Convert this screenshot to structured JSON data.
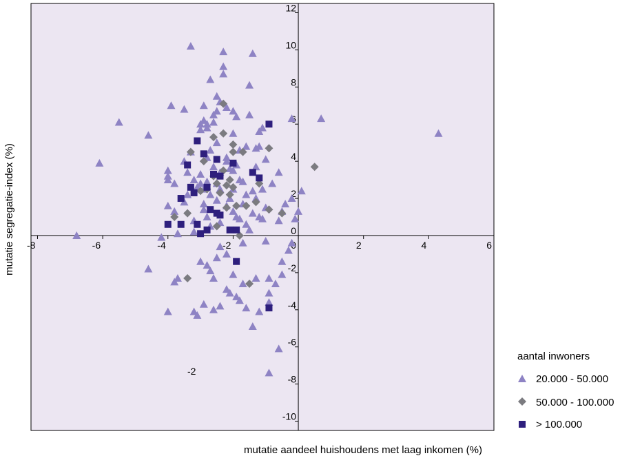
{
  "chart_data": {
    "type": "scatter",
    "xlabel": "mutatie aandeel huishoudens met laag inkomen (%)",
    "ylabel": "mutatie segregatie-index (%)",
    "xlim": [
      -8.2,
      6
    ],
    "ylim": [
      -10.5,
      12.5
    ],
    "x_ticks": [
      -8,
      -6,
      -4,
      -2,
      0,
      2,
      4,
      6
    ],
    "y_ticks": [
      12,
      10,
      8,
      6,
      4,
      2,
      0,
      -2,
      -4,
      -6,
      -8,
      -10
    ],
    "annotation": "-2",
    "background": "#ece6f2",
    "legend_title": "aantal inwoners",
    "legend_position": "right",
    "series": [
      {
        "name": "20.000 - 50.000",
        "marker": "triangle",
        "color": "#8e83c4",
        "points": [
          [
            -6.8,
            0.0
          ],
          [
            -6.1,
            3.9
          ],
          [
            -5.5,
            6.1
          ],
          [
            -4.6,
            5.4
          ],
          [
            -4.6,
            -1.8
          ],
          [
            -4.2,
            -0.1
          ],
          [
            -4.0,
            3.5
          ],
          [
            -4.0,
            3.2
          ],
          [
            -4.0,
            3.0
          ],
          [
            -4.0,
            1.6
          ],
          [
            -4.0,
            -4.1
          ],
          [
            -3.9,
            7.0
          ],
          [
            -3.8,
            2.8
          ],
          [
            -3.8,
            1.3
          ],
          [
            -3.8,
            -2.5
          ],
          [
            -3.7,
            -2.3
          ],
          [
            -3.7,
            0.1
          ],
          [
            -3.5,
            6.8
          ],
          [
            -3.5,
            4.0
          ],
          [
            -3.5,
            1.8
          ],
          [
            -3.4,
            3.4
          ],
          [
            -3.4,
            2.2
          ],
          [
            -3.3,
            10.2
          ],
          [
            -3.3,
            4.5
          ],
          [
            -3.2,
            3.0
          ],
          [
            -3.2,
            0.8
          ],
          [
            -3.2,
            0.2
          ],
          [
            -3.2,
            -4.1
          ],
          [
            -3.1,
            2.6
          ],
          [
            -3.1,
            -4.3
          ],
          [
            -3.0,
            6.0
          ],
          [
            -3.0,
            5.7
          ],
          [
            -3.0,
            3.3
          ],
          [
            -3.0,
            2.8
          ],
          [
            -3.0,
            -1.4
          ],
          [
            -2.9,
            7.0
          ],
          [
            -2.9,
            6.2
          ],
          [
            -2.9,
            2.5
          ],
          [
            -2.9,
            1.7
          ],
          [
            -2.9,
            1.4
          ],
          [
            -2.9,
            -3.7
          ],
          [
            -2.8,
            6.0
          ],
          [
            -2.8,
            5.8
          ],
          [
            -2.8,
            4.2
          ],
          [
            -2.8,
            2.9
          ],
          [
            -2.8,
            1.0
          ],
          [
            -2.8,
            -1.6
          ],
          [
            -2.7,
            8.4
          ],
          [
            -2.7,
            4.6
          ],
          [
            -2.7,
            2.2
          ],
          [
            -2.7,
            0.5
          ],
          [
            -2.7,
            -1.9
          ],
          [
            -2.6,
            6.5
          ],
          [
            -2.6,
            6.1
          ],
          [
            -2.6,
            3.7
          ],
          [
            -2.6,
            -2.3
          ],
          [
            -2.6,
            -4.0
          ],
          [
            -2.5,
            7.5
          ],
          [
            -2.5,
            6.7
          ],
          [
            -2.5,
            5.0
          ],
          [
            -2.5,
            2.8
          ],
          [
            -2.5,
            1.9
          ],
          [
            -2.5,
            -1.2
          ],
          [
            -2.4,
            7.2
          ],
          [
            -2.4,
            3.4
          ],
          [
            -2.4,
            2.5
          ],
          [
            -2.4,
            0.7
          ],
          [
            -2.4,
            -0.6
          ],
          [
            -2.4,
            -3.8
          ],
          [
            -2.3,
            9.9
          ],
          [
            -2.3,
            9.1
          ],
          [
            -2.3,
            8.7
          ],
          [
            -2.2,
            6.9
          ],
          [
            -2.2,
            4.2
          ],
          [
            -2.2,
            4.0
          ],
          [
            -2.2,
            1.6
          ],
          [
            -2.2,
            -1.0
          ],
          [
            -2.2,
            -2.9
          ],
          [
            -2.1,
            3.6
          ],
          [
            -2.1,
            2.0
          ],
          [
            -2.1,
            -3.1
          ],
          [
            -2.0,
            6.7
          ],
          [
            -2.0,
            5.5
          ],
          [
            -2.0,
            3.5
          ],
          [
            -2.0,
            2.5
          ],
          [
            -2.0,
            1.3
          ],
          [
            -2.0,
            -2.1
          ],
          [
            -1.9,
            6.4
          ],
          [
            -1.9,
            3.8
          ],
          [
            -1.9,
            1.0
          ],
          [
            -1.9,
            -3.3
          ],
          [
            -1.8,
            4.6
          ],
          [
            -1.8,
            3.0
          ],
          [
            -1.8,
            0.9
          ],
          [
            -1.8,
            -3.5
          ],
          [
            -1.7,
            2.9
          ],
          [
            -1.7,
            1.7
          ],
          [
            -1.7,
            -0.4
          ],
          [
            -1.7,
            -2.6
          ],
          [
            -1.6,
            4.8
          ],
          [
            -1.6,
            2.2
          ],
          [
            -1.6,
            0.6
          ],
          [
            -1.6,
            -3.9
          ],
          [
            -1.5,
            8.1
          ],
          [
            -1.5,
            6.5
          ],
          [
            -1.5,
            0.3
          ],
          [
            -1.4,
            9.8
          ],
          [
            -1.4,
            2.4
          ],
          [
            -1.4,
            1.2
          ],
          [
            -1.4,
            -4.9
          ],
          [
            -1.3,
            4.7
          ],
          [
            -1.3,
            3.7
          ],
          [
            -1.3,
            2.0
          ],
          [
            -1.3,
            -2.3
          ],
          [
            -1.2,
            5.6
          ],
          [
            -1.2,
            4.8
          ],
          [
            -1.2,
            1.0
          ],
          [
            -1.2,
            -4.1
          ],
          [
            -1.1,
            5.8
          ],
          [
            -1.1,
            2.5
          ],
          [
            -1.1,
            0.9
          ],
          [
            -1.0,
            4.1
          ],
          [
            -1.0,
            1.5
          ],
          [
            -1.0,
            -0.3
          ],
          [
            -0.9,
            -2.3
          ],
          [
            -0.9,
            -3.1
          ],
          [
            -0.9,
            -3.6
          ],
          [
            -0.9,
            -7.4
          ],
          [
            -0.8,
            2.8
          ],
          [
            -0.7,
            -2.6
          ],
          [
            -0.6,
            3.4
          ],
          [
            -0.6,
            0.8
          ],
          [
            -0.6,
            -6.1
          ],
          [
            -0.5,
            1.3
          ],
          [
            -0.5,
            -1.4
          ],
          [
            -0.5,
            -2.1
          ],
          [
            -0.4,
            1.7
          ],
          [
            -0.3,
            -0.8
          ],
          [
            -0.2,
            6.3
          ],
          [
            -0.2,
            2.0
          ],
          [
            -0.2,
            -0.4
          ],
          [
            -0.1,
            0.9
          ],
          [
            0.1,
            2.4
          ],
          [
            0.7,
            6.3
          ],
          [
            0.0,
            1.3
          ],
          [
            4.3,
            5.5
          ]
        ]
      },
      {
        "name": "50.000 - 100.000",
        "marker": "diamond",
        "color": "#7b7b80",
        "points": [
          [
            -3.8,
            1.0
          ],
          [
            -3.4,
            -2.3
          ],
          [
            -3.4,
            1.2
          ],
          [
            -3.3,
            4.5
          ],
          [
            -3.0,
            2.4
          ],
          [
            -2.9,
            4.0
          ],
          [
            -2.8,
            2.5
          ],
          [
            -2.6,
            5.3
          ],
          [
            -2.6,
            3.2
          ],
          [
            -2.5,
            2.8
          ],
          [
            -2.5,
            0.5
          ],
          [
            -2.4,
            2.3
          ],
          [
            -2.3,
            7.1
          ],
          [
            -2.3,
            5.5
          ],
          [
            -2.3,
            3.5
          ],
          [
            -2.2,
            2.7
          ],
          [
            -2.2,
            1.5
          ],
          [
            -2.1,
            3.0
          ],
          [
            -2.1,
            2.2
          ],
          [
            -2.0,
            4.9
          ],
          [
            -2.0,
            4.5
          ],
          [
            -2.0,
            2.6
          ],
          [
            -1.9,
            1.6
          ],
          [
            -1.8,
            0.0
          ],
          [
            -1.7,
            4.5
          ],
          [
            -1.6,
            1.6
          ],
          [
            -1.5,
            -2.6
          ],
          [
            -1.3,
            1.8
          ],
          [
            -1.2,
            2.8
          ],
          [
            -0.9,
            4.7
          ],
          [
            -0.9,
            1.4
          ],
          [
            -0.5,
            1.2
          ],
          [
            0.5,
            3.7
          ]
        ]
      },
      {
        "name": "> 100.000",
        "marker": "square",
        "color": "#2e1f7d",
        "points": [
          [
            -4.0,
            0.6
          ],
          [
            -3.6,
            2.0
          ],
          [
            -3.6,
            0.6
          ],
          [
            -3.4,
            3.8
          ],
          [
            -3.3,
            2.6
          ],
          [
            -3.2,
            2.3
          ],
          [
            -3.1,
            5.1
          ],
          [
            -3.1,
            0.6
          ],
          [
            -3.0,
            0.1
          ],
          [
            -2.9,
            4.4
          ],
          [
            -2.8,
            2.6
          ],
          [
            -2.8,
            0.3
          ],
          [
            -2.7,
            1.4
          ],
          [
            -2.6,
            3.3
          ],
          [
            -2.5,
            4.1
          ],
          [
            -2.5,
            1.2
          ],
          [
            -2.4,
            3.2
          ],
          [
            -2.4,
            1.1
          ],
          [
            -2.1,
            0.3
          ],
          [
            -2.0,
            3.9
          ],
          [
            -1.9,
            0.3
          ],
          [
            -1.9,
            -1.4
          ],
          [
            -1.4,
            3.4
          ],
          [
            -1.2,
            3.1
          ],
          [
            -0.9,
            6.0
          ],
          [
            -0.9,
            -3.9
          ]
        ]
      }
    ]
  }
}
